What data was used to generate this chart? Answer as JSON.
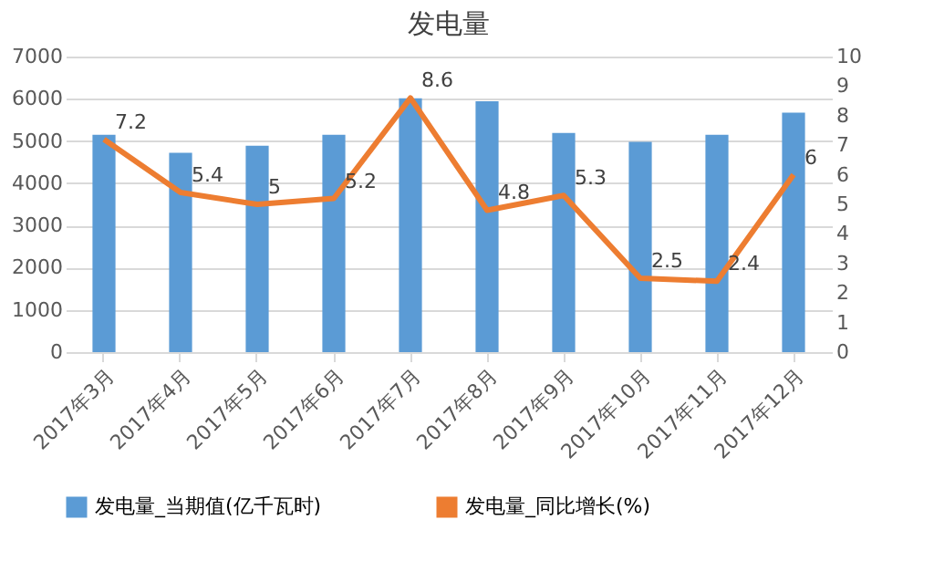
{
  "chart_data": {
    "type": "bar",
    "title": "发电量",
    "categories": [
      "2017年3月",
      "2017年4月",
      "2017年5月",
      "2017年6月",
      "2017年7月",
      "2017年8月",
      "2017年9月",
      "2017年10月",
      "2017年11月",
      "2017年12月"
    ],
    "series": [
      {
        "name": "发电量_当期值(亿千瓦时)",
        "color": "#5b9bd5",
        "values": [
          5150,
          4720,
          4890,
          5150,
          6010,
          5940,
          5190,
          4980,
          5150,
          5670
        ]
      },
      {
        "name": "发电量_同比增长(%)",
        "type": "line",
        "axis": "y2",
        "color": "#ed7d31",
        "values": [
          7.2,
          5.4,
          5,
          5.2,
          8.6,
          4.8,
          5.3,
          2.5,
          2.4,
          6
        ],
        "value_labels": [
          "7.2",
          "5.4",
          "5",
          "5.2",
          "8.6",
          "4.8",
          "5.3",
          "2.5",
          "2.4",
          "6"
        ]
      }
    ],
    "ylim": [
      0,
      7000
    ],
    "yticks": [
      0,
      1000,
      2000,
      3000,
      4000,
      5000,
      6000,
      7000
    ],
    "y2lim": [
      0,
      10
    ],
    "y2ticks": [
      0,
      1,
      2,
      3,
      4,
      5,
      6,
      7,
      8,
      9,
      10
    ],
    "grid": "y",
    "legend": "bottom"
  }
}
